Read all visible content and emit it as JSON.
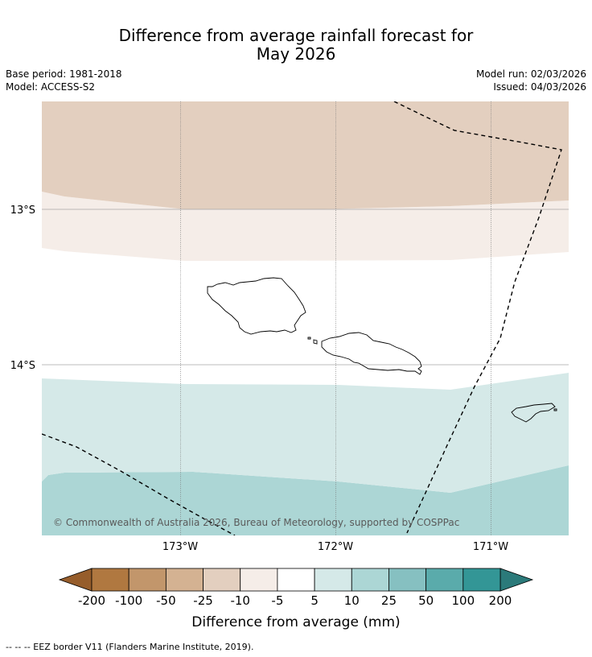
{
  "header": {
    "title_line1": "Difference from average rainfall forecast for",
    "title_line2": "May 2026",
    "base_period": "Base period: 1981-2018",
    "model": "Model: ACCESS-S2",
    "model_run": "Model run: 02/03/2026",
    "issued": "Issued: 04/03/2026"
  },
  "map": {
    "lat_labels": [
      "13°S",
      "14°S"
    ],
    "lon_labels": [
      "173°W",
      "172°W",
      "171°W"
    ],
    "copyright": "© Commonwealth of Australia 2026, Bureau of Meteorology, supported by COSPPac",
    "colors": {
      "below_25": "#e3cfbf",
      "below_10": "#f5ede8",
      "neutral": "#ffffff",
      "above_5": "#d5e9e8",
      "above_10": "#acd6d5"
    }
  },
  "colorbar": {
    "tick_labels": [
      "-200",
      "-100",
      "-50",
      "-25",
      "-10",
      "-5",
      "5",
      "10",
      "25",
      "50",
      "100",
      "200"
    ],
    "colors": [
      "#965d2b",
      "#b07840",
      "#c2966b",
      "#d4b292",
      "#e3cfbf",
      "#f5ede8",
      "#ffffff",
      "#d5e9e8",
      "#acd6d5",
      "#86c0c1",
      "#5aabab",
      "#339696",
      "#2b7a7a"
    ],
    "label": "Difference from average (mm)"
  },
  "footer": {
    "eez_legend": "--  --  -- EEZ border V11 (Flanders Marine Institute, 2019)."
  }
}
